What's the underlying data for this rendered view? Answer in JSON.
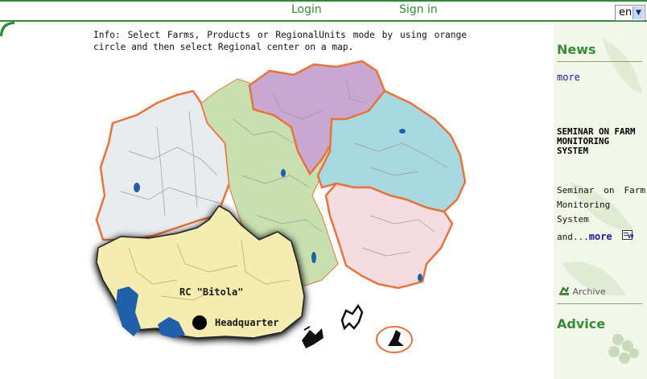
{
  "topbar": {
    "login": "Login",
    "signin": "Sign in",
    "language": "en"
  },
  "info": "Info: Select Farms, Products or RegionalUnits mode by using orange circle and then select Regional center on a map.",
  "map": {
    "rc_label": "RC \"Bitola\"",
    "headquarter_label": "Headquarter",
    "colors": {
      "border": "#e8733a",
      "west": "#e8ecef",
      "north_green": "#c8e0b0",
      "purple": "#c8a8d0",
      "blue": "#a8d8e0",
      "pink": "#f4dde2",
      "bitola": "#f4ecb0",
      "water": "#2060a8"
    }
  },
  "sidebar": {
    "news_title": "News",
    "news_more": "more",
    "seminar_title": "SEMINAR ON FARM MONITORING SYSTEM",
    "seminar_text": "Seminar on Farm Monitoring System",
    "and_text": "and...",
    "more_link": "more",
    "archive": "Archive",
    "advice_title": "Advice"
  }
}
